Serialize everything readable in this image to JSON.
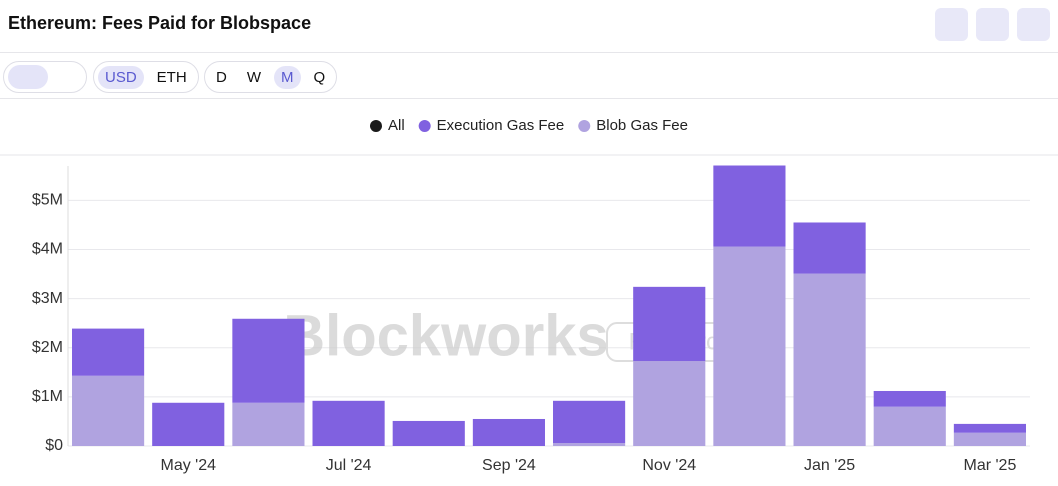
{
  "header": {
    "title": "Ethereum: Fees Paid for Blobspace"
  },
  "toolbar": {
    "currency": [
      "USD",
      "ETH"
    ],
    "interval": [
      "D",
      "W",
      "M",
      "Q"
    ]
  },
  "watermark": {
    "brand": "Blockworks",
    "tag": "Research"
  },
  "chart_data": {
    "type": "stacked-bar",
    "legend_all": {
      "name": "All",
      "color": "#1a1a1a"
    },
    "categories": [
      null,
      "May '24",
      null,
      "Jul '24",
      null,
      "Sep '24",
      null,
      "Nov '24",
      null,
      "Jan '25",
      null,
      "Mar '25"
    ],
    "series": [
      {
        "name": "Execution Gas Fee",
        "color": "#8061e0",
        "values": [
          960000,
          880000,
          1710000,
          920000,
          510000,
          550000,
          860000,
          1510000,
          1650000,
          1040000,
          320000,
          180000
        ]
      },
      {
        "name": "Blob Gas Fee",
        "color": "#b0a3e0",
        "values": [
          1430000,
          0,
          880000,
          0,
          0,
          0,
          60000,
          1730000,
          4060000,
          3510000,
          800000,
          270000
        ]
      }
    ],
    "ylim": [
      0,
      5700000
    ],
    "yticks": [
      {
        "value": 0,
        "label": "$0"
      },
      {
        "value": 1000000,
        "label": "$1M"
      },
      {
        "value": 2000000,
        "label": "$2M"
      },
      {
        "value": 3000000,
        "label": "$3M"
      },
      {
        "value": 4000000,
        "label": "$4M"
      },
      {
        "value": 5000000,
        "label": "$5M"
      }
    ],
    "grid": true
  }
}
